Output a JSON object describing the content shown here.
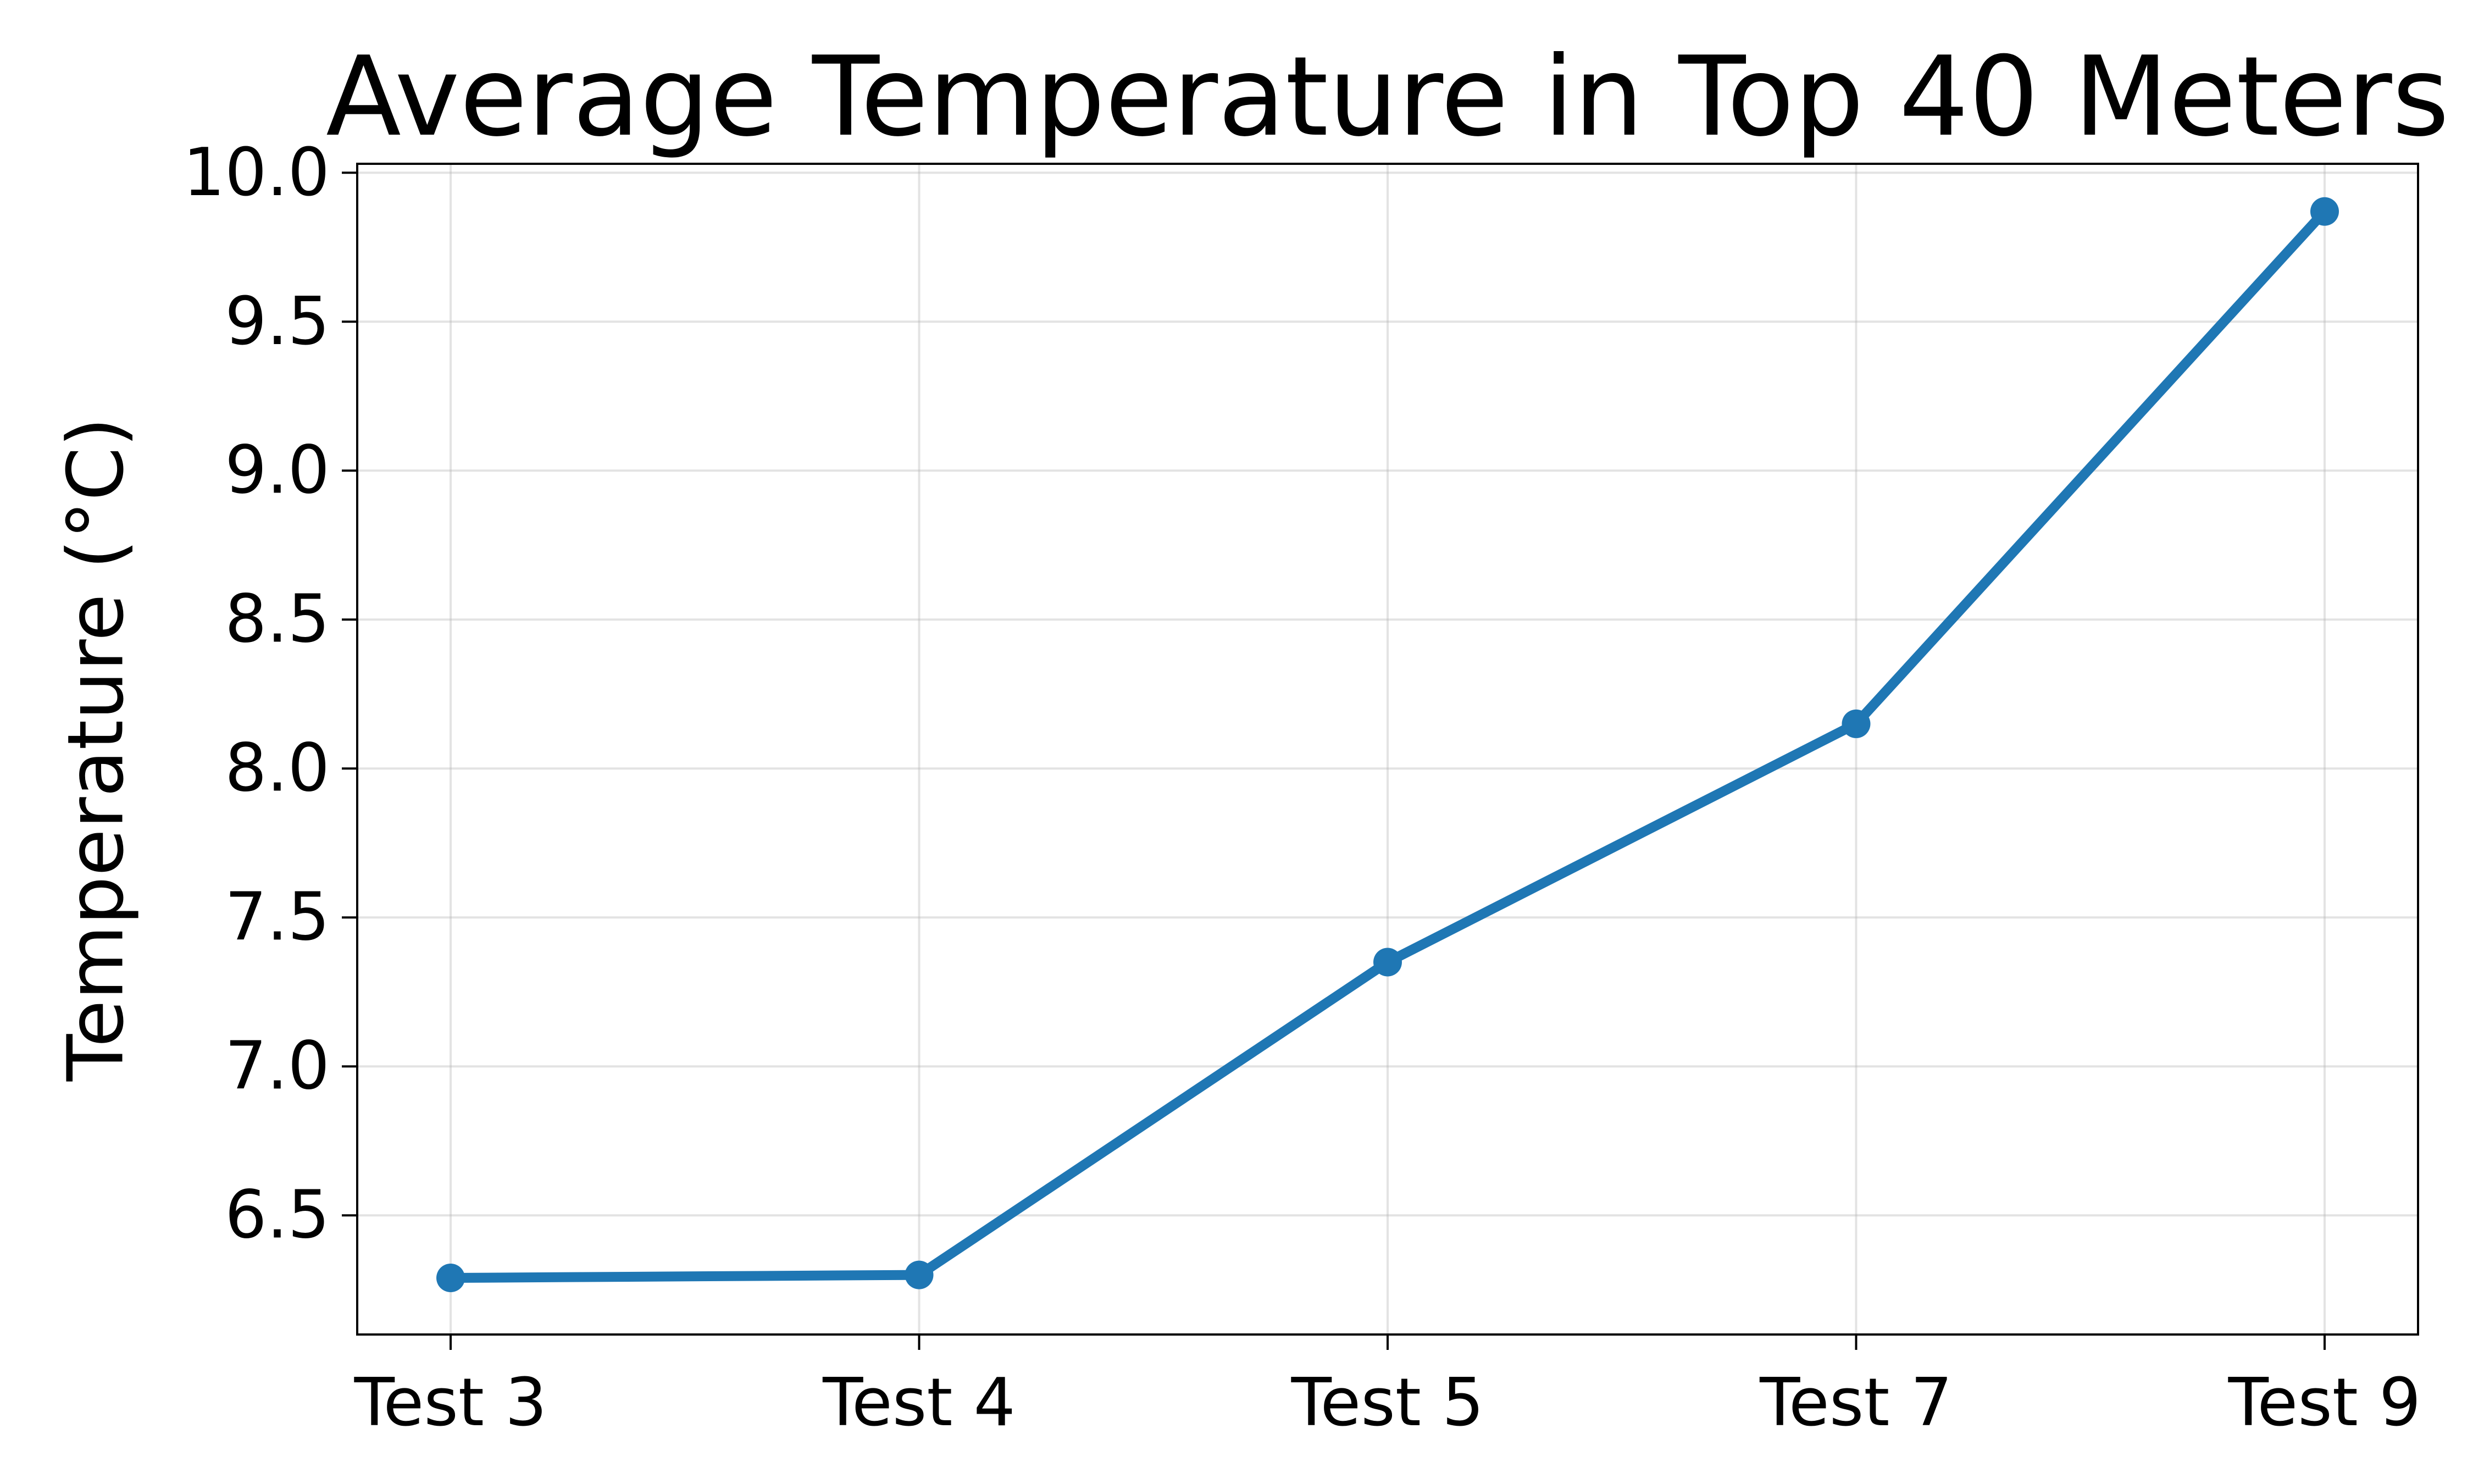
{
  "chart_data": {
    "type": "line",
    "title": "Average Temperature in Top 40 Meters",
    "xlabel": "",
    "ylabel": "Temperature (°C)",
    "categories": [
      "Test 3",
      "Test 4",
      "Test 5",
      "Test 7",
      "Test 9"
    ],
    "series": [
      {
        "values": [
          6.29,
          6.3,
          7.35,
          8.15,
          9.87
        ],
        "color": "#1f77b4",
        "marker": "circle"
      }
    ],
    "ylim": [
      6.1,
      10.03
    ],
    "yticks": [
      6.5,
      7.0,
      7.5,
      8.0,
      8.5,
      9.0,
      9.5,
      10.0
    ],
    "ytick_labels": [
      "6.5",
      "7.0",
      "7.5",
      "8.0",
      "8.5",
      "9.0",
      "9.5",
      "10.0"
    ],
    "grid": true,
    "legend": false
  }
}
